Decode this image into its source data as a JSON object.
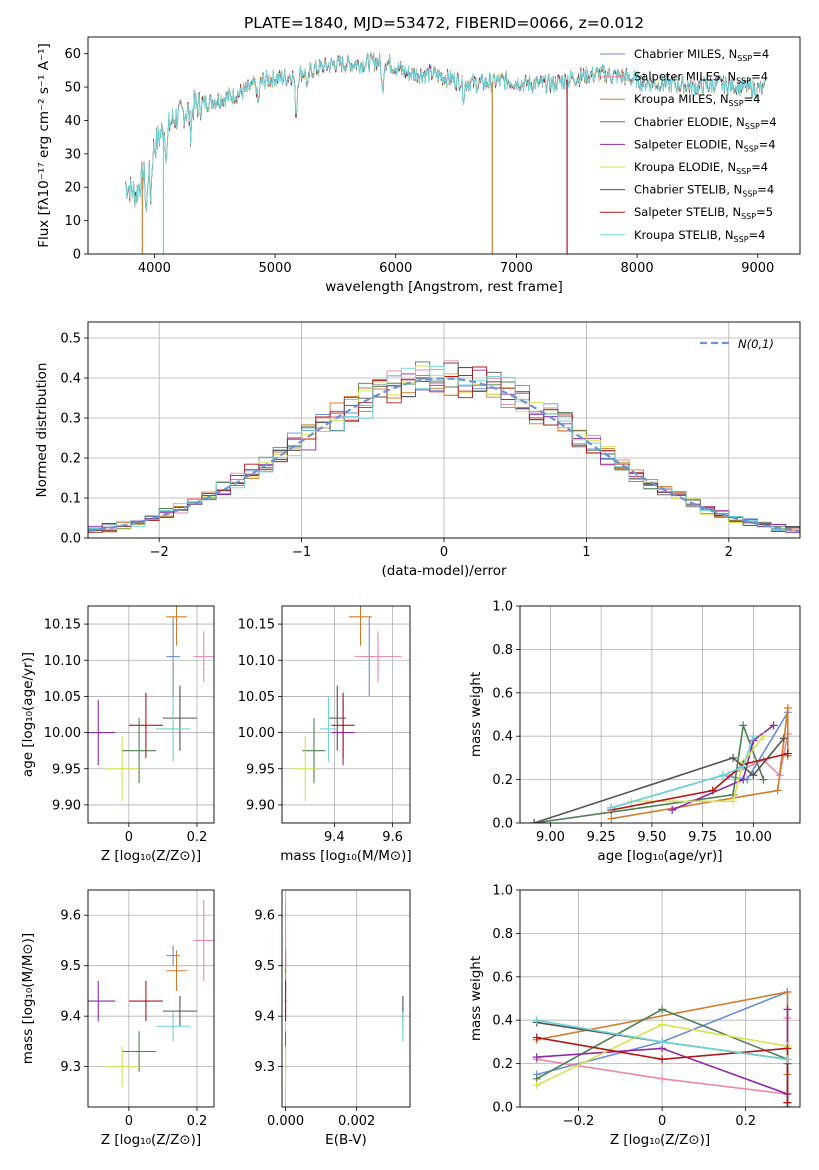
{
  "figure_title": "PLATE=1840, MJD=53472, FIBERID=0066, z=0.012",
  "colors": {
    "Chabrier MILES": "#6b8fd6",
    "Salpeter MILES": "#e88aa8",
    "Kroupa MILES": "#d27d2d",
    "Chabrier ELODIE": "#4f7f55",
    "Salpeter ELODIE": "#8f2aa6",
    "Kroupa ELODIE": "#d6e34b",
    "Chabrier STELIB": "#555555",
    "Salpeter STELIB": "#b01818",
    "Kroupa STELIB": "#6fd3d8",
    "normal_curve": "#6b93d6"
  },
  "chart_data": [
    {
      "id": "spectrum",
      "type": "line",
      "title": "PLATE=1840, MJD=53472, FIBERID=0066, z=0.012",
      "xlabel": "wavelength [Angstrom, rest frame]",
      "ylabel": "Flux [fλ10⁻¹⁷ erg cm⁻² s⁻¹ A⁻¹]",
      "xlim": [
        3450,
        9350
      ],
      "ylim": [
        0,
        65
      ],
      "xticks": [
        4000,
        5000,
        6000,
        7000,
        8000,
        9000
      ],
      "yticks": [
        0,
        10,
        20,
        30,
        40,
        50,
        60
      ],
      "grid": false,
      "legend": "top-right",
      "legend_entries": [
        {
          "model": "Chabrier MILES",
          "label": "Chabrier MILES, N",
          "sub": "SSP",
          "tail": "=4"
        },
        {
          "model": "Salpeter MILES",
          "label": "Salpeter MILES, N",
          "sub": "SSP",
          "tail": "=4"
        },
        {
          "model": "Kroupa MILES",
          "label": "Kroupa MILES, N",
          "sub": "SSP",
          "tail": "=4"
        },
        {
          "model": "Chabrier ELODIE",
          "label": "Chabrier ELODIE, N",
          "sub": "SSP",
          "tail": "=4"
        },
        {
          "model": "Salpeter ELODIE",
          "label": "Salpeter ELODIE, N",
          "sub": "SSP",
          "tail": "=4"
        },
        {
          "model": "Kroupa ELODIE",
          "label": "Kroupa ELODIE, N",
          "sub": "SSP",
          "tail": "=4"
        },
        {
          "model": "Chabrier STELIB",
          "label": "Chabrier STELIB, N",
          "sub": "SSP",
          "tail": "=4"
        },
        {
          "model": "Salpeter STELIB",
          "label": "Salpeter STELIB, N",
          "sub": "SSP",
          "tail": "=5"
        },
        {
          "model": "Kroupa STELIB",
          "label": "Kroupa STELIB, N",
          "sub": "SSP",
          "tail": "=4"
        }
      ],
      "continuum_x": [
        3760,
        3850,
        3950,
        4050,
        4150,
        4300,
        4500,
        4700,
        4900,
        5100,
        5300,
        5500,
        5700,
        5900,
        6100,
        6300,
        6500,
        6700,
        6900,
        7100,
        7300,
        7500,
        7700,
        7900,
        8100,
        8300,
        8500,
        8700,
        8900,
        9060
      ],
      "continuum_y": [
        21,
        18,
        28,
        36,
        40,
        44,
        46,
        48,
        52,
        53,
        55,
        57,
        57,
        58,
        54,
        54,
        52,
        51,
        52,
        51,
        51,
        53,
        54,
        53,
        51,
        51,
        50,
        51,
        50,
        49
      ],
      "drops": [
        {
          "model": "Kroupa MILES",
          "x": 3900
        },
        {
          "model": "Kroupa STELIB",
          "x": 4075
        },
        {
          "model": "Kroupa MILES",
          "x": 6800
        },
        {
          "model": "Salpeter STELIB",
          "x": 7420
        }
      ]
    },
    {
      "id": "residuals",
      "type": "histogram",
      "xlabel": "(data-model)/error",
      "ylabel": "Normed distribution",
      "xlim": [
        -2.5,
        2.5
      ],
      "ylim": [
        0,
        0.54
      ],
      "xticks": [
        -2,
        -1,
        0,
        1,
        2
      ],
      "yticks": [
        0.0,
        0.1,
        0.2,
        0.3,
        0.4,
        0.5
      ],
      "grid": true,
      "legend": "top-right",
      "curve_label": "N(0,1)",
      "curve_mu": 0,
      "curve_sigma": 1,
      "bin_width": 0.1
    },
    {
      "id": "age-vs-Z",
      "type": "scatter",
      "xlabel": "Z [log₁₀(Z/Z⊙)]",
      "ylabel": "age  [log₁₀(age/yr)]",
      "xlim": [
        -0.12,
        0.25
      ],
      "ylim": [
        9.875,
        10.175
      ],
      "xticks": [
        0.0,
        0.2
      ],
      "yticks": [
        9.9,
        9.95,
        10.0,
        10.05,
        10.1,
        10.15
      ],
      "grid": true
    },
    {
      "id": "age-vs-mass",
      "type": "scatter",
      "xlabel": "mass [log₁₀(M/M⊙)]",
      "xlim": [
        9.22,
        9.66
      ],
      "ylim": [
        9.875,
        10.175
      ],
      "xticks": [
        9.2,
        9.4,
        9.6
      ],
      "yticks": [
        9.9,
        9.95,
        10.0,
        10.05,
        10.1,
        10.15
      ],
      "grid": true
    },
    {
      "id": "mass-vs-Z",
      "type": "scatter",
      "xlabel": "Z [log₁₀(Z/Z⊙)]",
      "ylabel": "mass [log₁₀(M/M⊙)]",
      "xlim": [
        -0.12,
        0.25
      ],
      "ylim": [
        9.22,
        9.65
      ],
      "xticks": [
        0.0,
        0.2
      ],
      "yticks": [
        9.3,
        9.4,
        9.5,
        9.6
      ],
      "grid": true
    },
    {
      "id": "mass-vs-EBV",
      "type": "scatter",
      "xlabel": "E(B-V)",
      "xlim": [
        -0.0001,
        0.0035
      ],
      "ylim": [
        9.22,
        9.65
      ],
      "xticks": [
        0.0,
        0.002
      ],
      "xticklabels": [
        "0.000",
        "0.002"
      ],
      "yticks": [
        9.3,
        9.4,
        9.5,
        9.6
      ],
      "grid": true
    },
    {
      "id": "weight-vs-age",
      "type": "line",
      "xlabel": "age  [log₁₀(age/yr)]",
      "ylabel": "mass weight",
      "xlim": [
        8.85,
        10.23
      ],
      "ylim": [
        0,
        1
      ],
      "xticks": [
        9.0,
        9.25,
        9.5,
        9.75,
        10.0
      ],
      "xticklabels": [
        "9.00",
        "9.25",
        "9.50",
        "9.75",
        "10.00"
      ],
      "yticks": [
        0.0,
        0.2,
        0.4,
        0.6,
        0.8,
        1.0
      ],
      "grid": true
    },
    {
      "id": "weight-vs-Z",
      "type": "line",
      "xlabel": "Z [log₁₀(Z/Z⊙)]",
      "ylabel": "mass weight",
      "xlim": [
        -0.34,
        0.33
      ],
      "ylim": [
        0,
        1
      ],
      "xticks": [
        -0.2,
        0.0,
        0.2
      ],
      "yticks": [
        0.0,
        0.2,
        0.4,
        0.6,
        0.8,
        1.0
      ],
      "grid": true
    }
  ],
  "models": [
    {
      "name": "Chabrier MILES",
      "Z": 0.13,
      "Zerr": 0.02,
      "age": 10.105,
      "age_err": 0.055,
      "mass": 9.52,
      "mass_err": 0.02,
      "ebv": 0.0,
      "ebv_err": 2e-05,
      "ages": [
        9.3,
        9.85,
        9.97,
        10.17
      ],
      "age_weights": [
        0.07,
        0.22,
        0.2,
        0.51
      ],
      "Zs": [
        -0.3,
        0.0,
        0.3,
        0.3
      ],
      "Z_weights": [
        0.15,
        0.3,
        0.53,
        0.02
      ]
    },
    {
      "name": "Salpeter MILES",
      "Z": 0.22,
      "Zerr": 0.03,
      "age": 10.105,
      "age_err": 0.035,
      "mass": 9.55,
      "mass_err": 0.08,
      "ebv": 0.0,
      "ebv_err": 2e-05,
      "ages": [
        9.88,
        10.05,
        10.13,
        10.17
      ],
      "age_weights": [
        0.22,
        0.29,
        0.22,
        0.41
      ],
      "Zs": [
        -0.3,
        0.0,
        0.3,
        0.3
      ],
      "Z_weights": [
        0.22,
        0.13,
        0.06,
        0.41
      ]
    },
    {
      "name": "Kroupa MILES",
      "Z": 0.14,
      "Zerr": 0.03,
      "age": 10.16,
      "age_err": 0.04,
      "mass": 9.49,
      "mass_err": 0.04,
      "ebv": 0.0,
      "ebv_err": 3e-05,
      "ages": [
        9.3,
        10.12,
        10.17,
        10.17
      ],
      "age_weights": [
        0.02,
        0.15,
        0.53,
        0.31
      ],
      "Zs": [
        -0.3,
        0.3,
        0.3,
        0.3
      ],
      "Z_weights": [
        0.31,
        0.53,
        0.15,
        0.02
      ]
    },
    {
      "name": "Chabrier ELODIE",
      "Z": 0.03,
      "Zerr": 0.05,
      "age": 9.975,
      "age_err": 0.045,
      "mass": 9.33,
      "mass_err": 0.04,
      "ebv": 0.0,
      "ebv_err": 2e-05,
      "ages": [
        8.92,
        9.9,
        9.95,
        10.05
      ],
      "age_weights": [
        0.0,
        0.13,
        0.45,
        0.2
      ],
      "Zs": [
        -0.3,
        0.0,
        0.3,
        0.3
      ],
      "Z_weights": [
        0.13,
        0.45,
        0.22,
        0.2
      ]
    },
    {
      "name": "Salpeter ELODIE",
      "Z": -0.09,
      "Zerr": 0.05,
      "age": 10.0,
      "age_err": 0.045,
      "mass": 9.43,
      "mass_err": 0.04,
      "ebv": 0.0,
      "ebv_err": 2e-05,
      "ages": [
        9.6,
        9.95,
        10.0,
        10.1
      ],
      "age_weights": [
        0.06,
        0.2,
        0.38,
        0.45
      ],
      "Zs": [
        -0.3,
        0.0,
        0.3,
        0.3
      ],
      "Z_weights": [
        0.23,
        0.27,
        0.06,
        0.45
      ]
    },
    {
      "name": "Kroupa ELODIE",
      "Z": -0.02,
      "Zerr": 0.05,
      "age": 9.95,
      "age_err": 0.045,
      "mass": 9.3,
      "mass_err": 0.04,
      "ebv": 0.0,
      "ebv_err": 2e-05,
      "ages": [
        9.4,
        9.9,
        9.95,
        10.05
      ],
      "age_weights": [
        0.1,
        0.1,
        0.28,
        0.4
      ],
      "Zs": [
        -0.3,
        0.0,
        0.3,
        0.3
      ],
      "Z_weights": [
        0.1,
        0.38,
        0.28,
        0.22
      ]
    },
    {
      "name": "Chabrier STELIB",
      "Z": 0.15,
      "Zerr": 0.05,
      "age": 10.02,
      "age_err": 0.045,
      "mass": 9.41,
      "mass_err": 0.03,
      "ebv": 0.0033,
      "ebv_err": 2e-05,
      "ages": [
        8.92,
        9.9,
        10.0,
        10.15
      ],
      "age_weights": [
        0.0,
        0.3,
        0.22,
        0.39
      ],
      "Zs": [
        -0.3,
        0.0,
        0.3,
        0.3
      ],
      "Z_weights": [
        0.39,
        0.3,
        0.22,
        0.0
      ]
    },
    {
      "name": "Salpeter STELIB",
      "Z": 0.05,
      "Zerr": 0.05,
      "age": 10.01,
      "age_err": 0.045,
      "mass": 9.43,
      "mass_err": 0.04,
      "ebv": 0.0,
      "ebv_err": 2e-05,
      "ages": [
        9.3,
        9.8,
        9.95,
        10.17
      ],
      "age_weights": [
        0.06,
        0.15,
        0.27,
        0.32
      ],
      "Zs": [
        -0.3,
        0.0,
        0.3,
        0.3
      ],
      "Z_weights": [
        0.32,
        0.22,
        0.27,
        0.02
      ]
    },
    {
      "name": "Kroupa STELIB",
      "Z": 0.13,
      "Zerr": 0.05,
      "age": 10.005,
      "age_err": 0.045,
      "mass": 9.38,
      "mass_err": 0.03,
      "ebv": 0.0033,
      "ebv_err": 2e-05,
      "ages": [
        9.3,
        9.85,
        9.95,
        10.0
      ],
      "age_weights": [
        0.07,
        0.22,
        0.26,
        0.4
      ],
      "Zs": [
        -0.3,
        0.0,
        0.3,
        0.3
      ],
      "Z_weights": [
        0.4,
        0.3,
        0.22,
        0.22
      ]
    }
  ]
}
